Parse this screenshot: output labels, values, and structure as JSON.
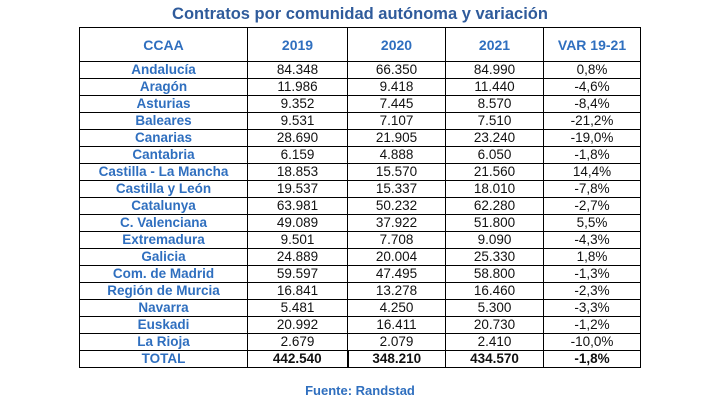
{
  "title": "Contratos por comunidad autónoma y variación",
  "columns": [
    "CCAA",
    "2019",
    "2020",
    "2021",
    "VAR 19-21"
  ],
  "rows": [
    [
      "Andalucía",
      "84.348",
      "66.350",
      "84.990",
      "0,8%"
    ],
    [
      "Aragón",
      "11.986",
      "9.418",
      "11.440",
      "-4,6%"
    ],
    [
      "Asturias",
      "9.352",
      "7.445",
      "8.570",
      "-8,4%"
    ],
    [
      "Baleares",
      "9.531",
      "7.107",
      "7.510",
      "-21,2%"
    ],
    [
      "Canarias",
      "28.690",
      "21.905",
      "23.240",
      "-19,0%"
    ],
    [
      "Cantabria",
      "6.159",
      "4.888",
      "6.050",
      "-1,8%"
    ],
    [
      "Castilla - La Mancha",
      "18.853",
      "15.570",
      "21.560",
      "14,4%"
    ],
    [
      "Castilla y León",
      "19.537",
      "15.337",
      "18.010",
      "-7,8%"
    ],
    [
      "Catalunya",
      "63.981",
      "50.232",
      "62.280",
      "-2,7%"
    ],
    [
      "C. Valenciana",
      "49.089",
      "37.922",
      "51.800",
      "5,5%"
    ],
    [
      "Extremadura",
      "9.501",
      "7.708",
      "9.090",
      "-4,3%"
    ],
    [
      "Galicia",
      "24.889",
      "20.004",
      "25.330",
      "1,8%"
    ],
    [
      "Com. de Madrid",
      "59.597",
      "47.495",
      "58.800",
      "-1,3%"
    ],
    [
      "Región de Murcia",
      "16.841",
      "13.278",
      "16.460",
      "-2,3%"
    ],
    [
      "Navarra",
      "5.481",
      "4.250",
      "5.300",
      "-3,3%"
    ],
    [
      "Euskadi",
      "20.992",
      "16.411",
      "20.730",
      "-1,2%"
    ],
    [
      "La Rioja",
      "2.679",
      "2.079",
      "2.410",
      "-10,0%"
    ]
  ],
  "total": [
    "TOTAL",
    "442.540",
    "348.210",
    "434.570",
    "-1,8%"
  ],
  "source": "Fuente: Randstad"
}
